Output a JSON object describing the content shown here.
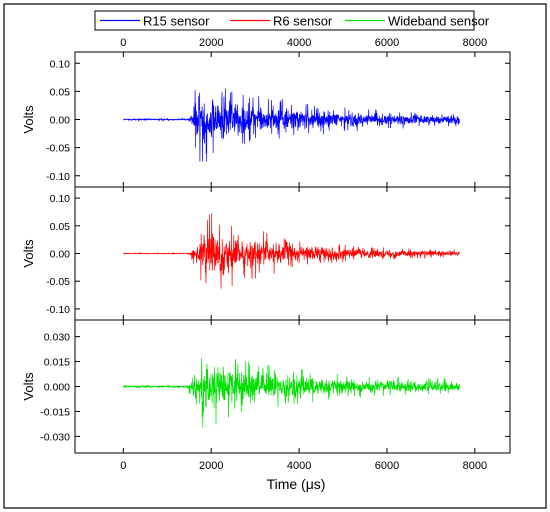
{
  "chart_data": {
    "type": "line",
    "xlabel": "Time (μs)",
    "xlim": [
      -1100,
      8800
    ],
    "x_ticks": [
      0,
      2000,
      4000,
      6000,
      8000
    ],
    "x_tick_labels": [
      "0",
      "2000",
      "4000",
      "6000",
      "8000"
    ],
    "legend": {
      "placement": "top",
      "entries": [
        "R15 sensor",
        "R6 sensor",
        "Wideband sensor"
      ]
    },
    "grid": false,
    "panels": [
      {
        "series_name": "R15 sensor",
        "color": "#0000ff",
        "ylabel": "Volts",
        "ylim": [
          -0.12,
          0.12
        ],
        "y_ticks": [
          0.1,
          0.05,
          0.0,
          -0.05,
          -0.1
        ],
        "y_tick_labels": [
          "0.10",
          "0.05",
          "0.00",
          "-0.05",
          "-0.10"
        ],
        "x_start": 0,
        "onset": 1500,
        "x_end": 7650,
        "peak_time": 1700,
        "pre_onset_noise": 0.002,
        "peak_amplitude": 0.085,
        "end_amplitude": 0.01,
        "min_value": -0.075,
        "max_value": 0.085
      },
      {
        "series_name": "R6 sensor",
        "color": "#ff0000",
        "ylabel": "Volts",
        "ylim": [
          -0.12,
          0.12
        ],
        "y_ticks": [
          0.1,
          0.05,
          0.0,
          -0.05,
          -0.1
        ],
        "y_tick_labels": [
          "0.10",
          "0.05",
          "0.00",
          "-0.05",
          "-0.10"
        ],
        "x_start": 0,
        "onset": 1500,
        "x_end": 7650,
        "peak_time": 1900,
        "pre_onset_noise": 0.001,
        "peak_amplitude": 0.08,
        "end_amplitude": 0.004,
        "min_value": -0.09,
        "max_value": 0.08
      },
      {
        "series_name": "Wideband sensor",
        "color": "#00e000",
        "ylabel": "Volts",
        "ylim": [
          -0.04,
          0.04
        ],
        "y_ticks": [
          0.03,
          0.015,
          0.0,
          -0.015,
          -0.03
        ],
        "y_tick_labels": [
          "0.030",
          "0.015",
          "0.000",
          "-0.015",
          "-0.030"
        ],
        "x_start": 0,
        "onset": 1450,
        "x_end": 7650,
        "peak_time": 1800,
        "pre_onset_noise": 0.0008,
        "peak_amplitude": 0.027,
        "end_amplitude": 0.004,
        "min_value": -0.03,
        "max_value": 0.027
      }
    ]
  }
}
